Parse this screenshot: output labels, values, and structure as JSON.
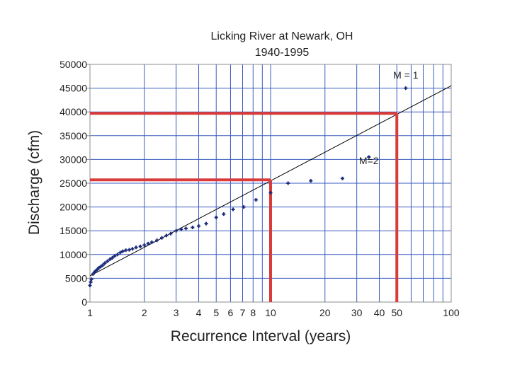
{
  "chart_data": {
    "type": "scatter",
    "title": "Licking River at Newark, OH",
    "subtitle": "1940-1995",
    "xlabel": "Recurrence Interval (years)",
    "ylabel": "Discharge (cfm)",
    "x_scale": "log",
    "xlim": [
      1,
      100
    ],
    "ylim": [
      0,
      50000
    ],
    "x_ticks": [
      1,
      2,
      3,
      4,
      5,
      6,
      7,
      8,
      10,
      20,
      30,
      40,
      50,
      100
    ],
    "x_tick_labels": [
      "1",
      "2",
      "3",
      "4",
      "5",
      "6",
      "7",
      "8",
      "10",
      "20",
      "30",
      "40",
      "50",
      "100"
    ],
    "y_ticks": [
      0,
      5000,
      10000,
      15000,
      20000,
      25000,
      30000,
      35000,
      40000,
      45000,
      50000
    ],
    "y_tick_labels": [
      "0",
      "5000",
      "10000",
      "15000",
      "20000",
      "25000",
      "30000",
      "35000",
      "40000",
      "45000",
      "50000"
    ],
    "grid": true,
    "colors": {
      "points": "#1a2a7a",
      "grid": "#3a5bbf",
      "highlight": "#d93a3a",
      "trend": "#000000"
    },
    "series": [
      {
        "values": [
          {
            "x": 1.0,
            "y": 3500
          },
          {
            "x": 1.01,
            "y": 4200
          },
          {
            "x": 1.02,
            "y": 4800
          },
          {
            "x": 1.04,
            "y": 5900
          },
          {
            "x": 1.06,
            "y": 6300
          },
          {
            "x": 1.08,
            "y": 6600
          },
          {
            "x": 1.1,
            "y": 6900
          },
          {
            "x": 1.12,
            "y": 7200
          },
          {
            "x": 1.15,
            "y": 7500
          },
          {
            "x": 1.18,
            "y": 7800
          },
          {
            "x": 1.21,
            "y": 8200
          },
          {
            "x": 1.25,
            "y": 8600
          },
          {
            "x": 1.29,
            "y": 9000
          },
          {
            "x": 1.33,
            "y": 9300
          },
          {
            "x": 1.37,
            "y": 9700
          },
          {
            "x": 1.42,
            "y": 10000
          },
          {
            "x": 1.47,
            "y": 10400
          },
          {
            "x": 1.52,
            "y": 10700
          },
          {
            "x": 1.58,
            "y": 10900
          },
          {
            "x": 1.65,
            "y": 11000
          },
          {
            "x": 1.72,
            "y": 11200
          },
          {
            "x": 1.8,
            "y": 11500
          },
          {
            "x": 1.9,
            "y": 11700
          },
          {
            "x": 2.0,
            "y": 12000
          },
          {
            "x": 2.1,
            "y": 12300
          },
          {
            "x": 2.2,
            "y": 12600
          },
          {
            "x": 2.35,
            "y": 13000
          },
          {
            "x": 2.5,
            "y": 13500
          },
          {
            "x": 2.65,
            "y": 14000
          },
          {
            "x": 2.8,
            "y": 14400
          },
          {
            "x": 3.0,
            "y": 15000
          },
          {
            "x": 3.2,
            "y": 15300
          },
          {
            "x": 3.4,
            "y": 15500
          },
          {
            "x": 3.7,
            "y": 15700
          },
          {
            "x": 4.0,
            "y": 16000
          },
          {
            "x": 4.4,
            "y": 16500
          },
          {
            "x": 5.0,
            "y": 17800
          },
          {
            "x": 5.5,
            "y": 18500
          },
          {
            "x": 6.2,
            "y": 19500
          },
          {
            "x": 7.1,
            "y": 20000
          },
          {
            "x": 8.3,
            "y": 21500
          },
          {
            "x": 10.0,
            "y": 23000
          },
          {
            "x": 12.5,
            "y": 25000
          },
          {
            "x": 16.7,
            "y": 25500
          },
          {
            "x": 25.0,
            "y": 26000
          },
          {
            "x": 35.0,
            "y": 30500
          },
          {
            "x": 56.0,
            "y": 45000
          }
        ]
      }
    ],
    "trendline": [
      {
        "x": 1,
        "y": 5500
      },
      {
        "x": 100,
        "y": 45500
      }
    ],
    "highlights": [
      {
        "x": 10,
        "y": 25700
      },
      {
        "x": 50,
        "y": 39700
      }
    ],
    "annotations": [
      {
        "text": "M = 1",
        "x": 56,
        "y": 47000
      },
      {
        "text": "M=2",
        "x": 35,
        "y": 29000
      }
    ]
  }
}
